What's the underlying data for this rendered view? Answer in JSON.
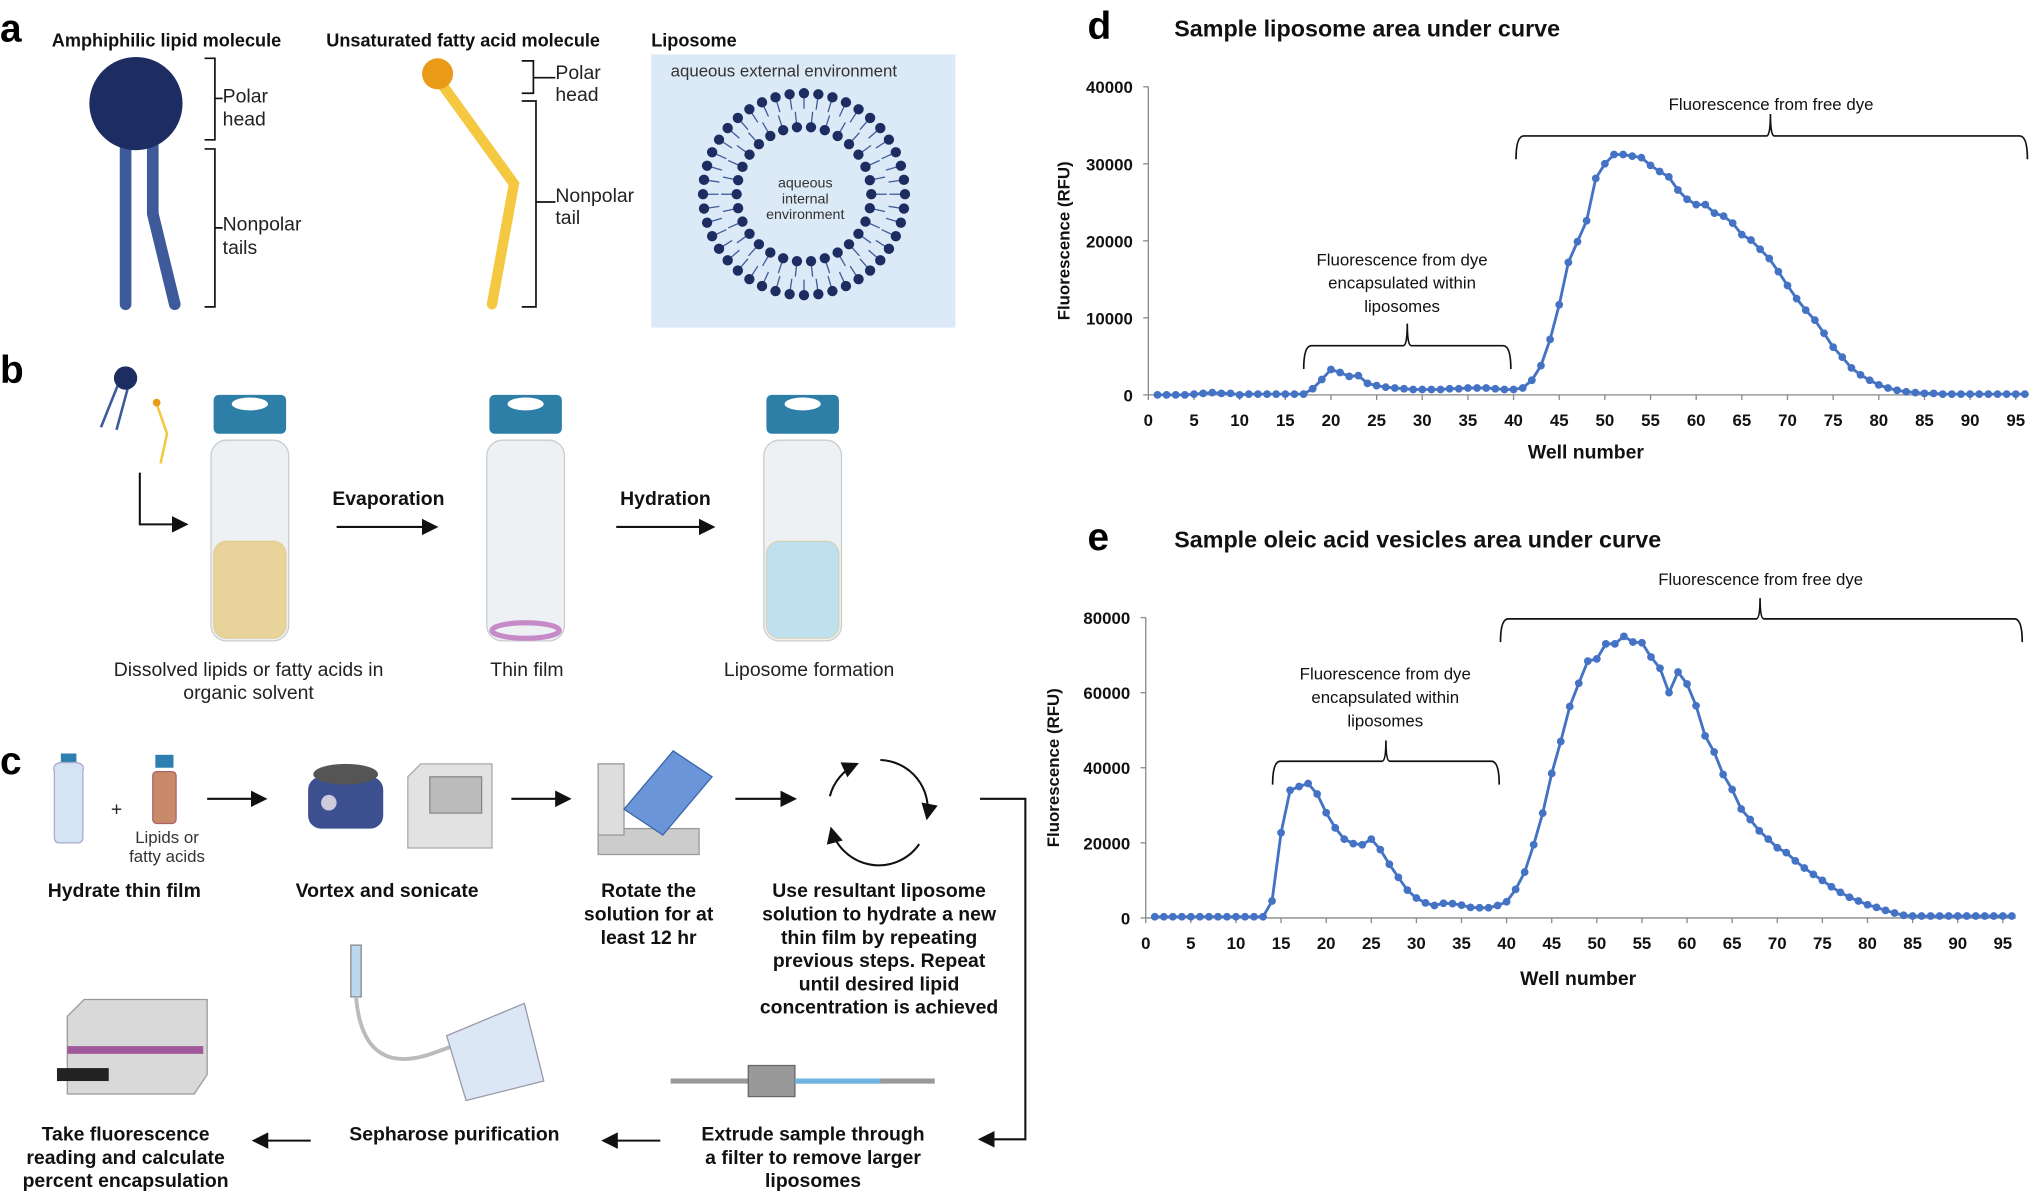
{
  "panel_a": {
    "label": "a",
    "lipid_title": "Amphiphilic lipid molecule",
    "fatty_title": "Unsaturated fatty acid molecule",
    "liposome_title": "Liposome",
    "lipid_head": [
      "Polar",
      "head"
    ],
    "lipid_tails": [
      "Nonpolar",
      "tails"
    ],
    "fatty_head": [
      "Polar",
      "head"
    ],
    "fatty_tail": [
      "Nonpolar",
      "tail"
    ],
    "external": "aqueous external environment",
    "internal": [
      "aqueous",
      "internal",
      "environment"
    ],
    "colors": {
      "lipid_head": "#1d2d62",
      "lipid_tail": "#3f5a9a",
      "fatty_head": "#e99a16",
      "fatty_tail": "#f5c842",
      "liposome_bg": "#dce9f7"
    }
  },
  "panel_b": {
    "label": "b",
    "evaporation": "Evaporation",
    "hydration": "Hydration",
    "caption1": [
      "Dissolved lipids or fatty acids in",
      "organic solvent"
    ],
    "caption2": "Thin film",
    "caption3": "Liposome formation"
  },
  "panel_c": {
    "label": "c",
    "lipids_label": [
      "Lipids or",
      "fatty acids"
    ],
    "plus": "+",
    "step1": "Hydrate thin film",
    "step2": "Vortex and sonicate",
    "step3": [
      "Rotate the",
      "solution for at",
      "least 12 hr"
    ],
    "step4": [
      "Use resultant liposome",
      "solution to hydrate a new",
      "thin film by repeating",
      "previous steps. Repeat",
      "until desired lipid",
      "concentration is achieved"
    ],
    "step5": [
      "Extrude sample through",
      "a filter to remove larger",
      "liposomes"
    ],
    "step6": "Sepharose purification",
    "step7": [
      "Take fluorescence",
      "reading and calculate",
      "percent encapsulation"
    ]
  },
  "chart_data": [
    {
      "panel": "d",
      "type": "line",
      "title": "Sample liposome area under curve",
      "xlabel": "Well number",
      "ylabel": "Fluorescence (RFU)",
      "xlim": [
        0,
        96
      ],
      "ylim": [
        0,
        40000
      ],
      "xticks": [
        0,
        5,
        10,
        15,
        20,
        25,
        30,
        35,
        40,
        45,
        50,
        55,
        60,
        65,
        70,
        75,
        80,
        85,
        90,
        95
      ],
      "yticks": [
        0,
        10000,
        20000,
        30000,
        40000
      ],
      "color": "#4472c4",
      "grid": false,
      "annotations": [
        {
          "text": [
            "Fluorescence from dye",
            "encapsulated within",
            "liposomes"
          ],
          "x_range": [
            17,
            40
          ]
        },
        {
          "text": [
            "Fluorescence from free dye"
          ],
          "x_range": [
            40,
            96
          ]
        }
      ],
      "x": [
        1,
        2,
        3,
        4,
        5,
        6,
        7,
        8,
        9,
        10,
        11,
        12,
        13,
        14,
        15,
        16,
        17,
        18,
        19,
        20,
        21,
        22,
        23,
        24,
        25,
        26,
        27,
        28,
        29,
        30,
        31,
        32,
        33,
        34,
        35,
        36,
        37,
        38,
        39,
        40,
        41,
        42,
        43,
        44,
        45,
        46,
        47,
        48,
        49,
        50,
        51,
        52,
        53,
        54,
        55,
        56,
        57,
        58,
        59,
        60,
        61,
        62,
        63,
        64,
        65,
        66,
        67,
        68,
        69,
        70,
        71,
        72,
        73,
        74,
        75,
        76,
        77,
        78,
        79,
        80,
        81,
        82,
        83,
        84,
        85,
        86,
        87,
        88,
        89,
        90,
        91,
        92,
        93,
        94,
        95,
        96
      ],
      "y": [
        0,
        0,
        0,
        0,
        100,
        200,
        300,
        200,
        200,
        0,
        100,
        100,
        100,
        100,
        100,
        100,
        100,
        800,
        2000,
        3300,
        2900,
        2400,
        2500,
        1500,
        1200,
        1000,
        900,
        800,
        700,
        700,
        700,
        700,
        800,
        800,
        900,
        900,
        900,
        800,
        700,
        700,
        900,
        1900,
        3800,
        7200,
        11700,
        17200,
        19900,
        22600,
        28100,
        30000,
        31200,
        31200,
        31000,
        30800,
        29800,
        29000,
        28300,
        26600,
        25400,
        24700,
        24700,
        23600,
        23200,
        22300,
        20800,
        20100,
        18900,
        17700,
        16000,
        14200,
        12500,
        11000,
        9700,
        8000,
        6200,
        4900,
        3500,
        2600,
        1900,
        1300,
        900,
        600,
        400,
        300,
        200,
        200,
        100,
        100,
        100,
        100,
        100,
        100,
        100,
        100,
        100,
        100
      ]
    },
    {
      "panel": "e",
      "type": "line",
      "title": "Sample oleic acid vesicles area under curve",
      "xlabel": "Well number",
      "ylabel": "Fluorescence (RFU)",
      "xlim": [
        0,
        96
      ],
      "ylim": [
        0,
        80000
      ],
      "xticks": [
        0,
        5,
        10,
        15,
        20,
        25,
        30,
        35,
        40,
        45,
        50,
        55,
        60,
        65,
        70,
        75,
        80,
        85,
        90,
        95
      ],
      "yticks": [
        0,
        20000,
        40000,
        60000,
        80000
      ],
      "color": "#4472c4",
      "grid": false,
      "annotations": [
        {
          "text": [
            "Fluorescence from dye",
            "encapsulated within",
            "liposomes"
          ],
          "x_range": [
            14,
            39
          ]
        },
        {
          "text": [
            "Fluorescence from free dye"
          ],
          "x_range": [
            39,
            96
          ]
        }
      ],
      "x": [
        1,
        2,
        3,
        4,
        5,
        6,
        7,
        8,
        9,
        10,
        11,
        12,
        13,
        14,
        15,
        16,
        17,
        18,
        19,
        20,
        21,
        22,
        23,
        24,
        25,
        26,
        27,
        28,
        29,
        30,
        31,
        32,
        33,
        34,
        35,
        36,
        37,
        38,
        39,
        40,
        41,
        42,
        43,
        44,
        45,
        46,
        47,
        48,
        49,
        50,
        51,
        52,
        53,
        54,
        55,
        56,
        57,
        58,
        59,
        60,
        61,
        62,
        63,
        64,
        65,
        66,
        67,
        68,
        69,
        70,
        71,
        72,
        73,
        74,
        75,
        76,
        77,
        78,
        79,
        80,
        81,
        82,
        83,
        84,
        85,
        86,
        87,
        88,
        89,
        90,
        91,
        92,
        93,
        94,
        95,
        96
      ],
      "y": [
        300,
        300,
        300,
        300,
        300,
        300,
        300,
        300,
        300,
        300,
        300,
        300,
        300,
        4500,
        22700,
        34000,
        35000,
        35800,
        33000,
        28000,
        24000,
        21000,
        19800,
        19500,
        21000,
        18200,
        14300,
        10800,
        7400,
        5300,
        4000,
        3300,
        3900,
        3800,
        3400,
        2800,
        2700,
        2700,
        3300,
        4300,
        7600,
        12200,
        19500,
        27900,
        38500,
        47000,
        56300,
        62500,
        68400,
        69000,
        73000,
        73000,
        75000,
        73500,
        73300,
        69500,
        66500,
        60000,
        65500,
        62300,
        56500,
        48500,
        44200,
        38200,
        34200,
        29000,
        26200,
        23200,
        21000,
        18700,
        17400,
        15200,
        13300,
        11600,
        10000,
        8300,
        6800,
        5500,
        4500,
        3500,
        2800,
        2000,
        1300,
        700,
        500,
        500,
        500,
        500,
        500,
        500,
        500,
        500,
        500,
        500,
        500,
        500
      ]
    }
  ]
}
